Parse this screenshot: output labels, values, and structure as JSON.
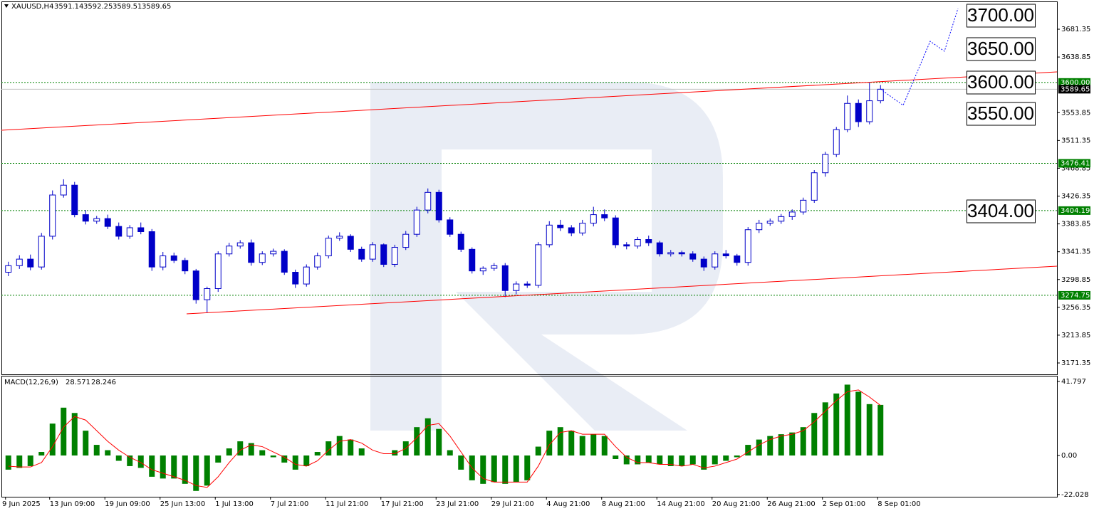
{
  "chart_data": [
    {
      "type": "candlestick",
      "title": "XAUUSD,H4",
      "ohlc_readout": [
        3591.14,
        3592.25,
        3589.51,
        3589.65
      ],
      "categories": [
        "9 Jun 2025",
        null,
        null,
        null,
        "13 Jun 09:00",
        null,
        null,
        null,
        null,
        "19 Jun 09:00",
        null,
        null,
        null,
        null,
        "25 Jun 13:00",
        null,
        null,
        null,
        null,
        "1 Jul 13:00",
        null,
        null,
        null,
        null,
        "7 Jul 21:00",
        null,
        null,
        null,
        null,
        "11 Jul 21:00",
        null,
        null,
        null,
        null,
        "17 Jul 21:00",
        null,
        null,
        null,
        null,
        "23 Jul 21:00",
        null,
        null,
        null,
        null,
        "29 Jul 21:00",
        null,
        null,
        null,
        null,
        "4 Aug 21:00",
        null,
        null,
        null,
        null,
        "8 Aug 21:00",
        null,
        null,
        null,
        null,
        "14 Aug 21:00",
        null,
        null,
        null,
        null,
        "20 Aug 21:00",
        null,
        null,
        null,
        null,
        "26 Aug 21:00",
        null,
        null,
        null,
        null,
        "2 Sep 01:00",
        null,
        null,
        null,
        null,
        "8 Sep 01:00"
      ],
      "open": [
        3310,
        3320,
        3330,
        3318,
        3365,
        3428,
        3443,
        3398,
        3388,
        3392,
        3380,
        3365,
        3378,
        3372,
        3318,
        3335,
        3328,
        3312,
        3268,
        3285,
        3338,
        3350,
        3355,
        3325,
        3338,
        3342,
        3310,
        3292,
        3318,
        3335,
        3362,
        3365,
        3345,
        3330,
        3352,
        3322,
        3348,
        3368,
        3405,
        3432,
        3390,
        3368,
        3345,
        3312,
        3316,
        3320,
        3282,
        3292,
        3290,
        3352,
        3382,
        3378,
        3370,
        3385,
        3398,
        3393,
        3352,
        3350,
        3360,
        3355,
        3338,
        3340,
        3338,
        3330,
        3318,
        3338,
        3335,
        3325,
        3375,
        3385,
        3388,
        3395,
        3402,
        3420,
        3462,
        3490,
        3528,
        3568,
        3540,
        3572
      ],
      "high": [
        3326,
        3336,
        3337,
        3370,
        3435,
        3452,
        3448,
        3405,
        3396,
        3398,
        3386,
        3382,
        3386,
        3376,
        3341,
        3340,
        3332,
        3315,
        3288,
        3342,
        3355,
        3359,
        3360,
        3342,
        3346,
        3345,
        3314,
        3322,
        3340,
        3366,
        3371,
        3368,
        3349,
        3356,
        3354,
        3352,
        3373,
        3410,
        3438,
        3436,
        3394,
        3372,
        3348,
        3319,
        3324,
        3324,
        3296,
        3296,
        3356,
        3388,
        3390,
        3382,
        3390,
        3410,
        3406,
        3397,
        3356,
        3364,
        3366,
        3358,
        3344,
        3343,
        3342,
        3334,
        3342,
        3344,
        3338,
        3379,
        3390,
        3392,
        3399,
        3406,
        3424,
        3466,
        3494,
        3532,
        3580,
        3574,
        3600,
        3596
      ],
      "low": [
        3304,
        3315,
        3313,
        3314,
        3360,
        3424,
        3394,
        3383,
        3384,
        3376,
        3360,
        3361,
        3368,
        3312,
        3313,
        3324,
        3307,
        3262,
        3248,
        3280,
        3334,
        3346,
        3320,
        3321,
        3334,
        3306,
        3286,
        3288,
        3314,
        3331,
        3358,
        3341,
        3326,
        3326,
        3318,
        3318,
        3344,
        3364,
        3400,
        3386,
        3364,
        3341,
        3308,
        3306,
        3312,
        3272,
        3276,
        3286,
        3286,
        3348,
        3373,
        3365,
        3366,
        3380,
        3388,
        3347,
        3345,
        3346,
        3350,
        3334,
        3334,
        3334,
        3326,
        3312,
        3314,
        3331,
        3320,
        3320,
        3370,
        3381,
        3384,
        3390,
        3398,
        3416,
        3456,
        3486,
        3524,
        3532,
        3536,
        3568
      ],
      "close": [
        3320,
        3330,
        3318,
        3365,
        3428,
        3443,
        3398,
        3388,
        3392,
        3380,
        3365,
        3378,
        3372,
        3318,
        3335,
        3328,
        3312,
        3268,
        3285,
        3338,
        3350,
        3355,
        3325,
        3338,
        3342,
        3310,
        3292,
        3318,
        3335,
        3362,
        3365,
        3345,
        3330,
        3352,
        3322,
        3348,
        3368,
        3405,
        3432,
        3390,
        3368,
        3345,
        3312,
        3316,
        3320,
        3282,
        3292,
        3290,
        3352,
        3382,
        3378,
        3370,
        3385,
        3398,
        3393,
        3352,
        3350,
        3360,
        3355,
        3338,
        3340,
        3338,
        3330,
        3318,
        3338,
        3335,
        3325,
        3375,
        3385,
        3388,
        3395,
        3402,
        3420,
        3462,
        3490,
        3528,
        3568,
        3540,
        3572,
        3589.65
      ],
      "color": "#0000c8",
      "ylim": [
        3153.95,
        3723.8
      ],
      "yticks": [
        3681.35,
        3638.85,
        3553.85,
        3511.35,
        3468.85,
        3426.35,
        3383.85,
        3341.35,
        3298.85,
        3256.35,
        3213.85,
        3171.35
      ],
      "levels": [
        {
          "value": 3600,
          "label": "3600.00"
        },
        {
          "value": 3476.41,
          "label": "3476.41"
        },
        {
          "value": 3404.19,
          "label": "3404.19"
        },
        {
          "value": 3274.75,
          "label": "3274.75"
        }
      ],
      "level_color": "#008000",
      "current_price": 3589.65,
      "annotations": [
        "3700.00",
        "3650.00",
        "3600.00",
        "3550.00",
        "3404.00"
      ]
    },
    {
      "type": "macd",
      "title": "MACD(12,26,9)",
      "readout": [
        28.571,
        28.246
      ],
      "series": [
        {
          "color": "#008000",
          "values": [
            -8,
            -7,
            -6,
            2,
            18,
            27,
            24,
            14,
            6,
            3,
            -3,
            -6,
            -7,
            -12,
            -13,
            -13,
            -16,
            -20,
            -17,
            -4,
            4,
            8,
            7,
            3,
            -1,
            -4,
            -8,
            -6,
            2,
            8,
            11,
            9,
            4,
            0,
            0,
            3,
            8,
            16,
            21,
            15,
            3,
            -8,
            -14,
            -16,
            -15,
            -16,
            -15,
            -14,
            5,
            14,
            16,
            14,
            11,
            12,
            11,
            -2,
            -5,
            -5,
            -4,
            -5,
            -6,
            -6,
            -5,
            -8,
            -5,
            -3,
            -1,
            6,
            9,
            11,
            12,
            13,
            16,
            24,
            30,
            35,
            40,
            36,
            29,
            28.571
          ]
        },
        {
          "color": "#ff0000",
          "values": [
            -6,
            -6.5,
            -6.5,
            -4,
            5,
            16,
            22,
            20,
            14,
            8,
            3,
            -1,
            -4,
            -8,
            -10,
            -12,
            -14,
            -17,
            -18,
            -12,
            -4,
            3,
            6,
            5,
            2,
            -1,
            -5,
            -6,
            -3,
            3,
            8,
            9,
            7,
            3,
            1,
            1,
            4,
            10,
            17,
            18,
            11,
            2,
            -7,
            -13,
            -15,
            -15,
            -15,
            -15,
            -6,
            6,
            13,
            14,
            12,
            12,
            12,
            5,
            -1,
            -4,
            -4,
            -5,
            -5,
            -6,
            -5,
            -7,
            -6,
            -4,
            -2,
            2,
            6,
            9,
            11,
            12,
            14,
            19,
            25,
            31,
            36,
            37,
            33,
            28.246
          ]
        }
      ],
      "ylim": [
        -23.3,
        45.0
      ],
      "yticks": [
        41.797,
        {
          "value": 0,
          "label": "0.00"
        },
        -22.028
      ]
    }
  ]
}
